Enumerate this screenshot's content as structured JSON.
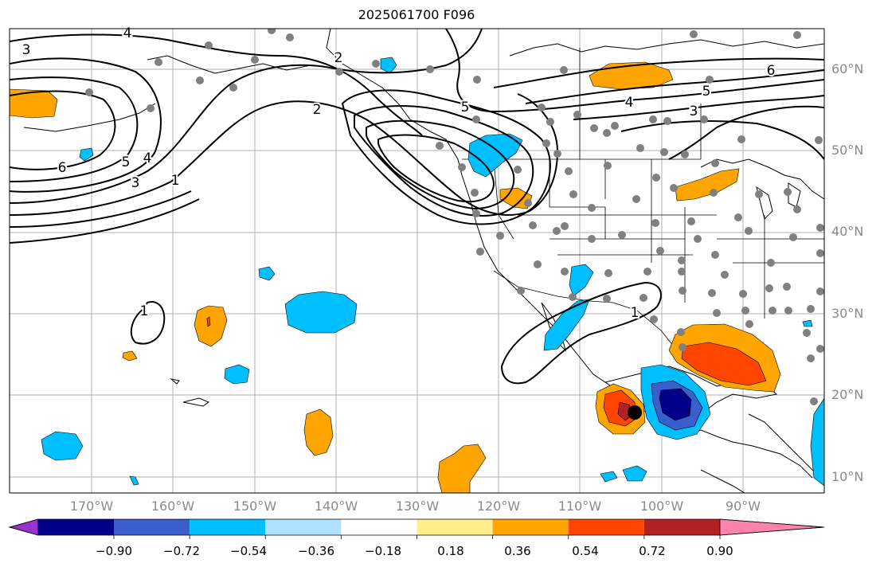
{
  "title": "2025061700 F096",
  "lat_ticks": [
    "60°N",
    "50°N",
    "40°N",
    "30°N",
    "20°N",
    "10°N"
  ],
  "lon_ticks": [
    "170°W",
    "160°W",
    "150°W",
    "140°W",
    "130°W",
    "120°W",
    "110°W",
    "100°W",
    "90°W"
  ],
  "contour_labels": [
    "3",
    "4",
    "2",
    "6",
    "5",
    "4",
    "3",
    "1",
    "2",
    "5",
    "6",
    "5",
    "4",
    "3",
    "1",
    "1"
  ],
  "colorbar": {
    "labels": [
      "−0.90",
      "−0.72",
      "−0.54",
      "−0.36",
      "−0.18",
      "0.18",
      "0.36",
      "0.54",
      "0.72",
      "0.90"
    ],
    "colors": [
      "#9a32cd",
      "#00008b",
      "#3a5fcd",
      "#00bfff",
      "#b0e2ff",
      "#ffffff",
      "#ffec8b",
      "#ffa500",
      "#ff4500",
      "#b22222",
      "#ff82ab"
    ]
  }
}
